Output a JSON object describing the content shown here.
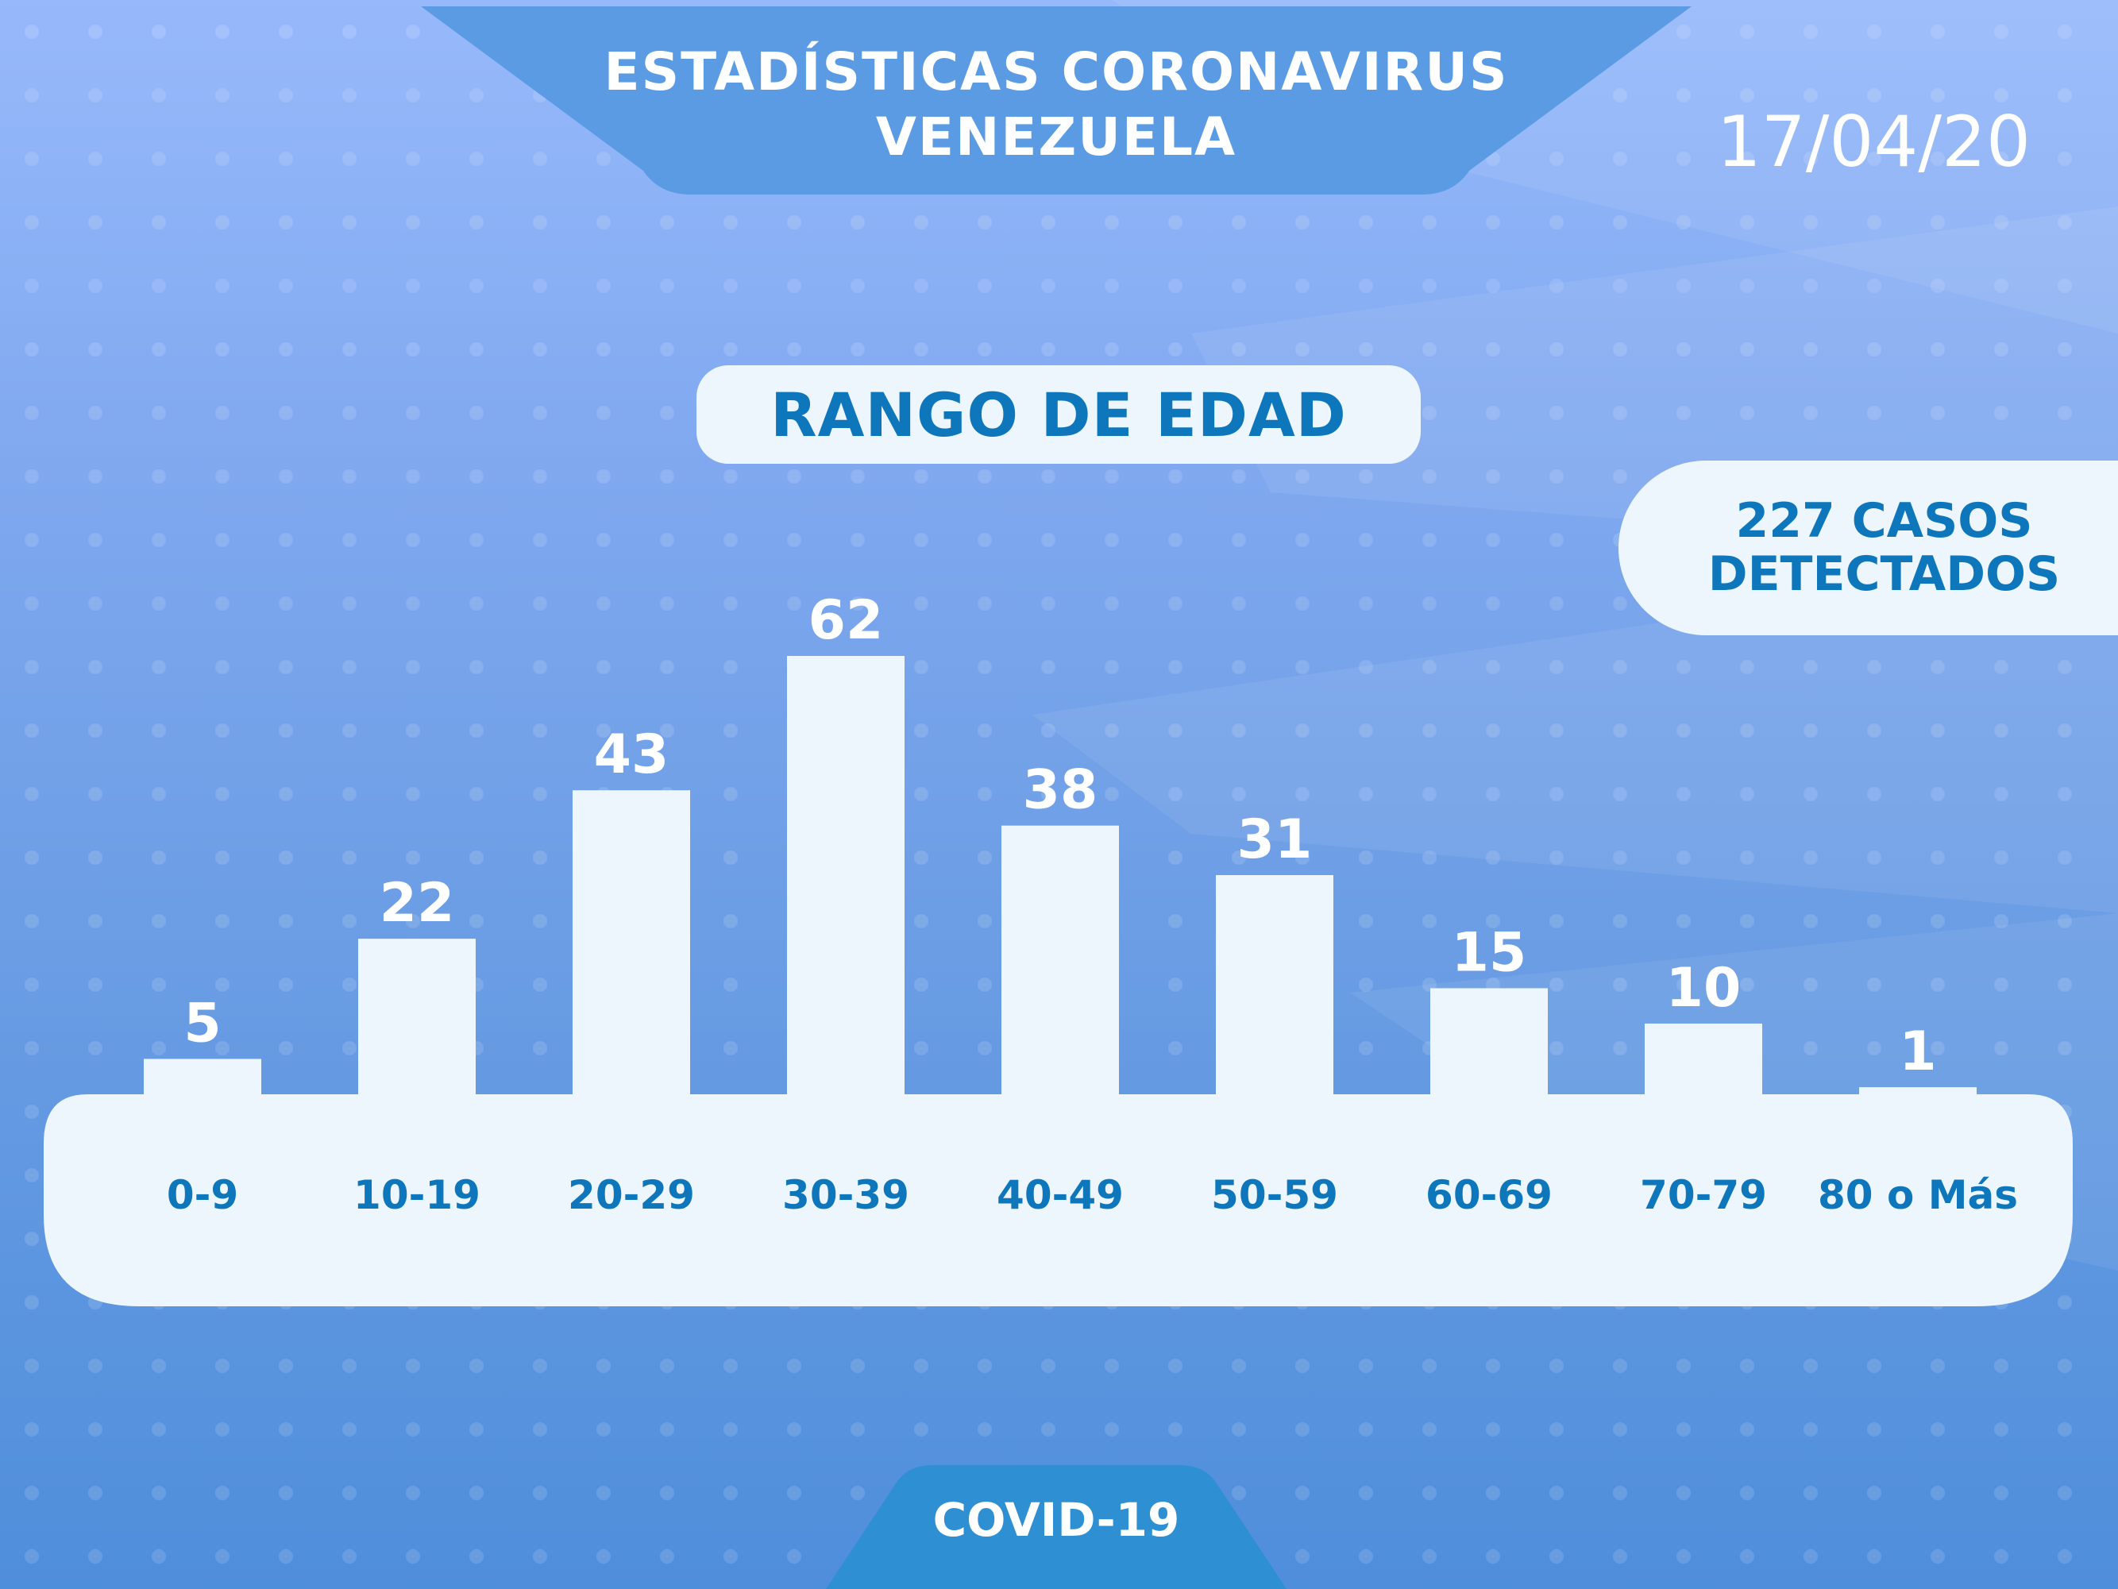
{
  "header": {
    "title_line1": "ESTADÍSTICAS CORONAVIRUS",
    "title_line2": "VENEZUELA",
    "date": "17/04/20"
  },
  "badges": {
    "rango": "RANGO DE EDAD",
    "casos_line1": "227 CASOS",
    "casos_line2": "DETECTADOS"
  },
  "footer": {
    "label": "COVID-19"
  },
  "colors": {
    "bar": "#eef6fd",
    "value_text": "#ffffff",
    "category_text": "#0e76bb",
    "ribbon": "#5b9be4",
    "footer_ribbon": "#2f8fd3"
  },
  "chart_data": {
    "type": "bar",
    "categories": [
      "0-9",
      "10-19",
      "20-29",
      "30-39",
      "40-49",
      "50-59",
      "60-69",
      "70-79",
      "80 o Más"
    ],
    "values": [
      5,
      22,
      43,
      62,
      38,
      31,
      15,
      10,
      1
    ],
    "title": "RANGO DE EDAD",
    "xlabel": "",
    "ylabel": "",
    "ylim": [
      0,
      62
    ],
    "grid": false,
    "legend": "none"
  }
}
